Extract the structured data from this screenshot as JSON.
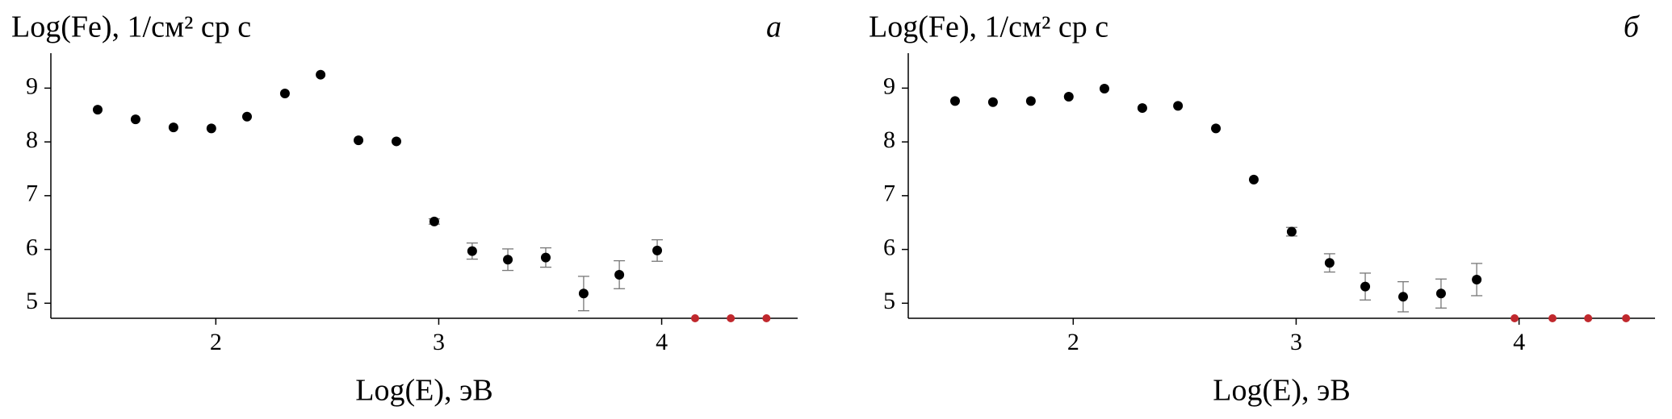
{
  "chart_data": [
    {
      "type": "scatter",
      "title": "Log(Fe), 1/см² ср с",
      "panel_label": "а",
      "x_label": "Log(E), эВ",
      "xlim": [
        1.26,
        4.61
      ],
      "ylim": [
        4.72,
        9.65
      ],
      "xticks": [
        2,
        3,
        4
      ],
      "yticks": [
        5,
        6,
        7,
        8,
        9
      ],
      "series": [
        {
          "color": "#000000",
          "x": [
            1.47,
            1.64,
            1.81,
            1.98,
            2.14,
            2.31,
            2.47,
            2.64,
            2.81,
            2.98,
            3.15,
            3.31,
            3.48,
            3.65,
            3.81,
            3.98
          ],
          "values": [
            8.6,
            8.42,
            8.27,
            8.25,
            8.47,
            8.9,
            9.25,
            8.03,
            8.01,
            6.52,
            5.97,
            5.81,
            5.85,
            5.18,
            5.53,
            5.98
          ],
          "errors": [
            null,
            null,
            null,
            null,
            null,
            null,
            null,
            null,
            null,
            0.05,
            0.15,
            0.2,
            0.18,
            0.32,
            0.26,
            0.2
          ]
        },
        {
          "color": "#c0282d",
          "x": [
            4.15,
            4.31,
            4.47
          ],
          "values": [
            4.72,
            4.72,
            4.72
          ]
        }
      ]
    },
    {
      "type": "scatter",
      "title": "Log(Fe), 1/см² ср с",
      "panel_label": "б",
      "x_label": "Log(E), эВ",
      "xlim": [
        1.26,
        4.61
      ],
      "ylim": [
        4.72,
        9.65
      ],
      "xticks": [
        2,
        3,
        4
      ],
      "yticks": [
        5,
        6,
        7,
        8,
        9
      ],
      "series": [
        {
          "color": "#000000",
          "x": [
            1.47,
            1.64,
            1.81,
            1.98,
            2.14,
            2.31,
            2.47,
            2.64,
            2.81,
            2.98,
            3.15,
            3.31,
            3.48,
            3.65,
            3.81
          ],
          "values": [
            8.76,
            8.74,
            8.76,
            8.84,
            8.99,
            8.63,
            8.67,
            8.25,
            7.3,
            6.33,
            5.75,
            5.31,
            5.12,
            5.18,
            5.44
          ],
          "errors": [
            null,
            null,
            null,
            null,
            null,
            null,
            null,
            null,
            null,
            0.08,
            0.17,
            0.25,
            0.28,
            0.27,
            0.3
          ]
        },
        {
          "color": "#c0282d",
          "x": [
            3.98,
            4.15,
            4.31,
            4.48
          ],
          "values": [
            4.72,
            4.72,
            4.72,
            4.72
          ]
        }
      ]
    }
  ]
}
